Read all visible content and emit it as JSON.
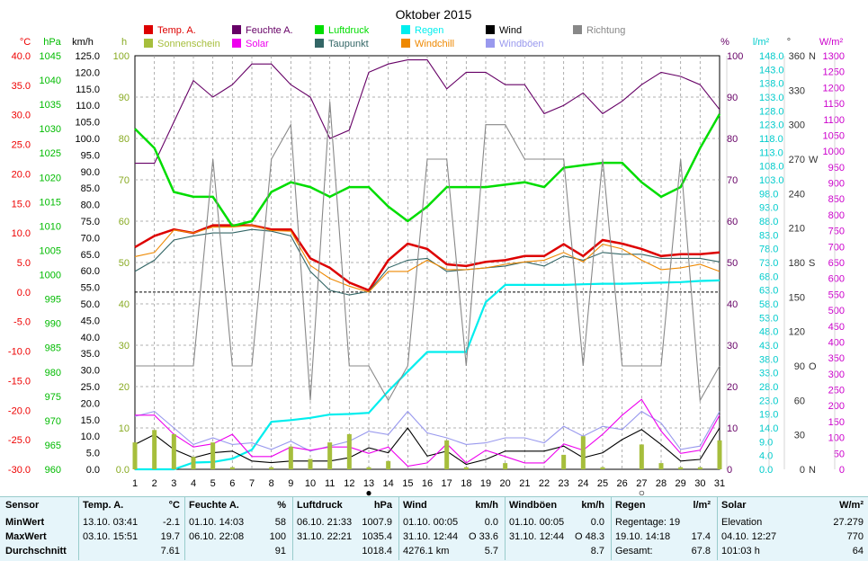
{
  "title": "Oktober 2015",
  "legend": [
    {
      "label": "Temp. A.",
      "color": "#dd0000"
    },
    {
      "label": "Sonnenschein",
      "color": "#a6be3c"
    },
    {
      "label": "Feuchte A.",
      "color": "#660066"
    },
    {
      "label": "Solar",
      "color": "#ee00ee"
    },
    {
      "label": "Luftdruck",
      "color": "#00dd00"
    },
    {
      "label": "Taupunkt",
      "color": "#336666"
    },
    {
      "label": "Regen",
      "color": "#00eeee"
    },
    {
      "label": "Windchill",
      "color": "#ee8800"
    },
    {
      "label": "Wind",
      "color": "#000000"
    },
    {
      "label": "Windböen",
      "color": "#9999ee"
    },
    {
      "label": "Richtung",
      "color": "#888888"
    }
  ],
  "axis_units": {
    "temp": "°C",
    "pressure": "hPa",
    "wind": "km/h",
    "sun": "h",
    "humidity": "%",
    "rain": "l/m²",
    "direction": "°",
    "solar": "W/m²"
  },
  "axis_ticks": {
    "temp": [
      "40.0",
      "35.0",
      "30.0",
      "25.0",
      "20.0",
      "15.0",
      "10.0",
      "5.0",
      "0.0",
      "-5.0",
      "-10.0",
      "-15.0",
      "-20.0",
      "-25.0",
      "-30.0"
    ],
    "pressure": [
      "1045",
      "1040",
      "1035",
      "1030",
      "1025",
      "1020",
      "1015",
      "1010",
      "1005",
      "1000",
      "995",
      "990",
      "985",
      "980",
      "975",
      "970",
      "965",
      "960"
    ],
    "wind": [
      "125.0",
      "120.0",
      "115.0",
      "110.0",
      "105.0",
      "100.0",
      "95.0",
      "90.0",
      "85.0",
      "80.0",
      "75.0",
      "70.0",
      "65.0",
      "60.0",
      "55.0",
      "50.0",
      "45.0",
      "40.0",
      "35.0",
      "30.0",
      "25.0",
      "20.0",
      "15.0",
      "10.0",
      "5.0",
      "0.0"
    ],
    "sun": [
      "100",
      "90",
      "80",
      "70",
      "60",
      "50",
      "40",
      "30",
      "20",
      "10",
      "0.0"
    ],
    "humidity": [
      "100",
      "90",
      "80",
      "70",
      "60",
      "50",
      "40",
      "30",
      "20",
      "10",
      "0"
    ],
    "rain": [
      "148.0",
      "143.0",
      "138.0",
      "133.0",
      "128.0",
      "123.0",
      "118.0",
      "113.0",
      "108.0",
      "103.0",
      "98.0",
      "93.0",
      "88.0",
      "83.0",
      "78.0",
      "73.0",
      "68.0",
      "63.0",
      "58.0",
      "53.0",
      "48.0",
      "43.0",
      "38.0",
      "33.0",
      "28.0",
      "23.0",
      "19.0",
      "14.0",
      "9.0",
      "4.0",
      "0.0"
    ],
    "direction": [
      "360",
      "330",
      "300",
      "270",
      "240",
      "210",
      "180",
      "150",
      "120",
      "90",
      "60",
      "30",
      "0"
    ],
    "direction_labels": [
      "N",
      "",
      "",
      "W",
      "",
      "",
      "S",
      "",
      "",
      "O",
      "",
      "",
      "N"
    ],
    "solar": [
      "1300",
      "1250",
      "1200",
      "1150",
      "1100",
      "1050",
      "1000",
      "950",
      "900",
      "850",
      "800",
      "750",
      "700",
      "650",
      "600",
      "550",
      "500",
      "450",
      "400",
      "350",
      "300",
      "250",
      "200",
      "150",
      "100",
      "50",
      "0"
    ]
  },
  "markers": [
    {
      "day": 13,
      "symbol": "●"
    },
    {
      "day": 27,
      "symbol": "○"
    }
  ],
  "chart_data": {
    "type": "line",
    "title": "Oktober 2015",
    "x": [
      1,
      2,
      3,
      4,
      5,
      6,
      7,
      8,
      9,
      10,
      11,
      12,
      13,
      14,
      15,
      16,
      17,
      18,
      19,
      20,
      21,
      22,
      23,
      24,
      25,
      26,
      27,
      28,
      29,
      30,
      31
    ],
    "series": [
      {
        "name": "Temp. A.",
        "axis": "temp",
        "values": [
          7.6,
          9.5,
          10.6,
          10.0,
          11.3,
          11.3,
          11.3,
          10.6,
          10.6,
          5.7,
          4.1,
          1.6,
          0.3,
          5.4,
          8.2,
          7.3,
          4.7,
          4.4,
          5.1,
          5.4,
          6.1,
          6.1,
          8.1,
          6.1,
          8.8,
          8.2,
          7.3,
          6.1,
          6.4,
          6.4,
          6.7
        ]
      },
      {
        "name": "Feuchte A.",
        "axis": "humidity",
        "values": [
          74,
          74,
          84,
          94,
          90,
          93,
          98,
          98,
          93,
          90,
          80,
          82,
          96,
          98,
          99,
          99,
          92,
          96,
          96,
          93,
          93,
          86,
          88,
          91,
          86,
          89,
          93,
          96,
          95,
          93,
          87
        ]
      },
      {
        "name": "Luftdruck",
        "axis": "pressure",
        "values": [
          1030,
          1026,
          1017,
          1016,
          1016,
          1010,
          1011,
          1017,
          1019,
          1018,
          1016,
          1018,
          1018,
          1014,
          1011,
          1014,
          1018,
          1018,
          1018,
          1018.5,
          1019,
          1018,
          1022,
          1022.5,
          1023,
          1023,
          1019,
          1016,
          1018,
          1026,
          1033
        ]
      },
      {
        "name": "Taupunkt",
        "axis": "temp",
        "values": [
          3.5,
          5.4,
          8.8,
          9.5,
          10.0,
          10.0,
          10.6,
          10.3,
          9.5,
          3.5,
          0.3,
          -0.5,
          0.1,
          4.1,
          5.4,
          5.7,
          3.5,
          3.8,
          4.1,
          4.4,
          5.1,
          4.4,
          6.1,
          5.4,
          6.7,
          6.4,
          6.4,
          5.7,
          5.7,
          5.7,
          5.1
        ]
      },
      {
        "name": "Windchill",
        "axis": "temp",
        "values": [
          6.0,
          6.7,
          10.5,
          10.0,
          11.0,
          11.0,
          11.3,
          10.4,
          10.3,
          4.5,
          2.3,
          1.0,
          0.0,
          3.5,
          3.5,
          5.4,
          3.8,
          3.8,
          4.1,
          4.7,
          5.1,
          5.4,
          6.7,
          5.1,
          8.1,
          7.3,
          5.4,
          3.8,
          4.1,
          4.7,
          3.5
        ]
      },
      {
        "name": "Regen",
        "axis": "rain",
        "values": [
          0.0,
          0.0,
          0.0,
          2.4,
          2.6,
          3.8,
          7.0,
          17.0,
          17.6,
          18.4,
          19.6,
          19.8,
          20.2,
          28.0,
          35.0,
          42.0,
          42.0,
          42.0,
          59.8,
          66.0,
          66.0,
          66.0,
          66.0,
          66.2,
          66.4,
          66.4,
          66.6,
          66.8,
          67.0,
          67.4,
          67.6
        ]
      },
      {
        "name": "Wind",
        "axis": "wind",
        "values": [
          7.5,
          10.5,
          6.0,
          3.5,
          5.0,
          5.5,
          2.5,
          2.0,
          2.5,
          2.5,
          2.5,
          3.5,
          6.5,
          5.0,
          12.5,
          4.0,
          5.5,
          1.5,
          3.0,
          5.5,
          5.5,
          5.5,
          7.0,
          3.5,
          5.0,
          9.0,
          12.0,
          7.5,
          2.5,
          3.0,
          12.5
        ]
      },
      {
        "name": "Windböen",
        "axis": "wind",
        "values": [
          16.0,
          17.5,
          12.5,
          7.5,
          9.5,
          7.5,
          8.0,
          6.0,
          8.5,
          5.5,
          7.0,
          8.5,
          11.5,
          10.5,
          17.5,
          11.0,
          9.5,
          7.5,
          8.0,
          9.5,
          9.5,
          8.0,
          13.0,
          10.0,
          13.0,
          12.0,
          17.5,
          14.0,
          6.0,
          7.0,
          17.5
        ]
      },
      {
        "name": "Richtung",
        "axis": "direction",
        "values": [
          90,
          90,
          90,
          90,
          270,
          90,
          90,
          270,
          300,
          60,
          320,
          90,
          90,
          60,
          90,
          270,
          270,
          90,
          300,
          300,
          270,
          270,
          270,
          90,
          270,
          90,
          90,
          90,
          270,
          60,
          90
        ]
      },
      {
        "name": "Solar",
        "axis": "solar",
        "values": [
          170,
          170,
          110,
          70,
          80,
          110,
          40,
          40,
          70,
          60,
          70,
          70,
          50,
          70,
          10,
          20,
          80,
          20,
          60,
          40,
          20,
          20,
          80,
          60,
          110,
          170,
          220,
          120,
          50,
          60,
          170
        ]
      },
      {
        "name": "Sonnenschein",
        "axis": "sun",
        "type": "bar",
        "values": [
          6.5,
          9.5,
          8.5,
          3.0,
          6.5,
          0.5,
          0,
          0.5,
          5.5,
          2.5,
          6.5,
          8.5,
          0.5,
          2.0,
          0,
          0,
          7.0,
          0.5,
          0,
          1.5,
          0,
          0,
          3.5,
          8.0,
          0.5,
          0,
          6.0,
          1.5,
          0.5,
          0.5,
          7.0
        ]
      }
    ],
    "scales": {
      "temp": [
        -30,
        40
      ],
      "pressure": [
        960,
        1045
      ],
      "wind": [
        0,
        125
      ],
      "sun": [
        0,
        100
      ],
      "humidity": [
        0,
        100
      ],
      "rain": [
        0,
        148
      ],
      "direction": [
        0,
        360
      ],
      "solar": [
        0,
        1300
      ]
    },
    "zero_line": {
      "axis": "temp",
      "value": 0
    },
    "grid": true
  },
  "stats": {
    "headers": [
      {
        "label": "Sensor",
        "unit": ""
      },
      {
        "label": "Temp. A.",
        "unit": "°C"
      },
      {
        "label": "Feuchte A.",
        "unit": "%"
      },
      {
        "label": "Luftdruck",
        "unit": "hPa"
      },
      {
        "label": "Wind",
        "unit": "km/h"
      },
      {
        "label": "Windböen",
        "unit": "km/h"
      },
      {
        "label": "Regen",
        "unit": "l/m²"
      },
      {
        "label": "Solar",
        "unit": "W/m²"
      }
    ],
    "row_labels": [
      "MinWert",
      "MaxWert",
      "Durchschnitt"
    ],
    "cells": [
      [
        {
          "a": "13.10.  03:41",
          "b": "-2.1"
        },
        {
          "a": "01.10.  14:03",
          "b": "58"
        },
        {
          "a": "06.10.  21:33",
          "b": "1007.9"
        },
        {
          "a": "01.10.  00:05",
          "b": "0.0"
        },
        {
          "a": "01.10.  00:05",
          "b": "0.0"
        },
        {
          "a": "Regentage: 19",
          "b": ""
        },
        {
          "a": "Elevation",
          "b": "27.279"
        }
      ],
      [
        {
          "a": "03.10.  15:51",
          "b": "19.7"
        },
        {
          "a": "06.10.  22:08",
          "b": "100"
        },
        {
          "a": "31.10.  22:21",
          "b": "1035.4"
        },
        {
          "a": "31.10.  12:44",
          "b": "O  33.6"
        },
        {
          "a": "31.10.  12:44",
          "b": "O  48.3"
        },
        {
          "a": "19.10.  14:18",
          "b": "17.4"
        },
        {
          "a": "04.10.  12:27",
          "b": "770"
        }
      ],
      [
        {
          "a": "",
          "b": "7.61"
        },
        {
          "a": "",
          "b": "91"
        },
        {
          "a": "",
          "b": "1018.4"
        },
        {
          "a": "4276.1 km",
          "b": "5.7"
        },
        {
          "a": "",
          "b": "8.7"
        },
        {
          "a": "Gesamt:",
          "b": "67.8"
        },
        {
          "a": "101:03 h",
          "b": "64"
        }
      ]
    ]
  }
}
